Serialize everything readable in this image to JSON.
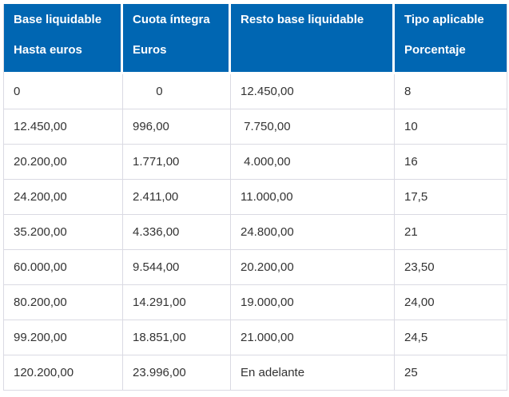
{
  "table": {
    "accent_color": "#0066b2",
    "border_color": "#dadae3",
    "header_text_color": "#ffffff",
    "body_text_color": "#333333",
    "columns": [
      {
        "line1": "Base liquidable",
        "line2": "Hasta euros"
      },
      {
        "line1": "Cuota íntegra",
        "line2": "Euros"
      },
      {
        "line1": "Resto base liquidable",
        "line2": ""
      },
      {
        "line1": "Tipo aplicable",
        "line2": "Porcentaje"
      }
    ],
    "rows": [
      [
        "0",
        "       0",
        "12.450,00",
        "8"
      ],
      [
        "12.450,00",
        "996,00",
        " 7.750,00",
        "10"
      ],
      [
        "20.200,00",
        "1.771,00",
        " 4.000,00",
        "16"
      ],
      [
        "24.200,00",
        "2.411,00",
        "11.000,00",
        "17,5"
      ],
      [
        "35.200,00",
        "4.336,00",
        "24.800,00",
        "21"
      ],
      [
        "60.000,00",
        "9.544,00",
        "20.200,00",
        "23,50"
      ],
      [
        "80.200,00",
        "14.291,00",
        "19.000,00",
        "24,00"
      ],
      [
        "99.200,00",
        "18.851,00",
        "21.000,00",
        "24,5"
      ],
      [
        "120.200,00",
        "23.996,00",
        "En adelante",
        "25"
      ]
    ]
  },
  "chart_data": {
    "type": "table",
    "title": "",
    "columns": [
      "Base liquidable Hasta euros",
      "Cuota íntegra Euros",
      "Resto base liquidable",
      "Tipo aplicable Porcentaje"
    ],
    "rows": [
      [
        "0",
        "0",
        "12.450,00",
        "8"
      ],
      [
        "12.450,00",
        "996,00",
        "7.750,00",
        "10"
      ],
      [
        "20.200,00",
        "1.771,00",
        "4.000,00",
        "16"
      ],
      [
        "24.200,00",
        "2.411,00",
        "11.000,00",
        "17,5"
      ],
      [
        "35.200,00",
        "4.336,00",
        "24.800,00",
        "21"
      ],
      [
        "60.000,00",
        "9.544,00",
        "20.200,00",
        "23,50"
      ],
      [
        "80.200,00",
        "14.291,00",
        "19.000,00",
        "24,00"
      ],
      [
        "99.200,00",
        "18.851,00",
        "21.000,00",
        "24,5"
      ],
      [
        "120.200,00",
        "23.996,00",
        "En adelante",
        "25"
      ]
    ]
  }
}
